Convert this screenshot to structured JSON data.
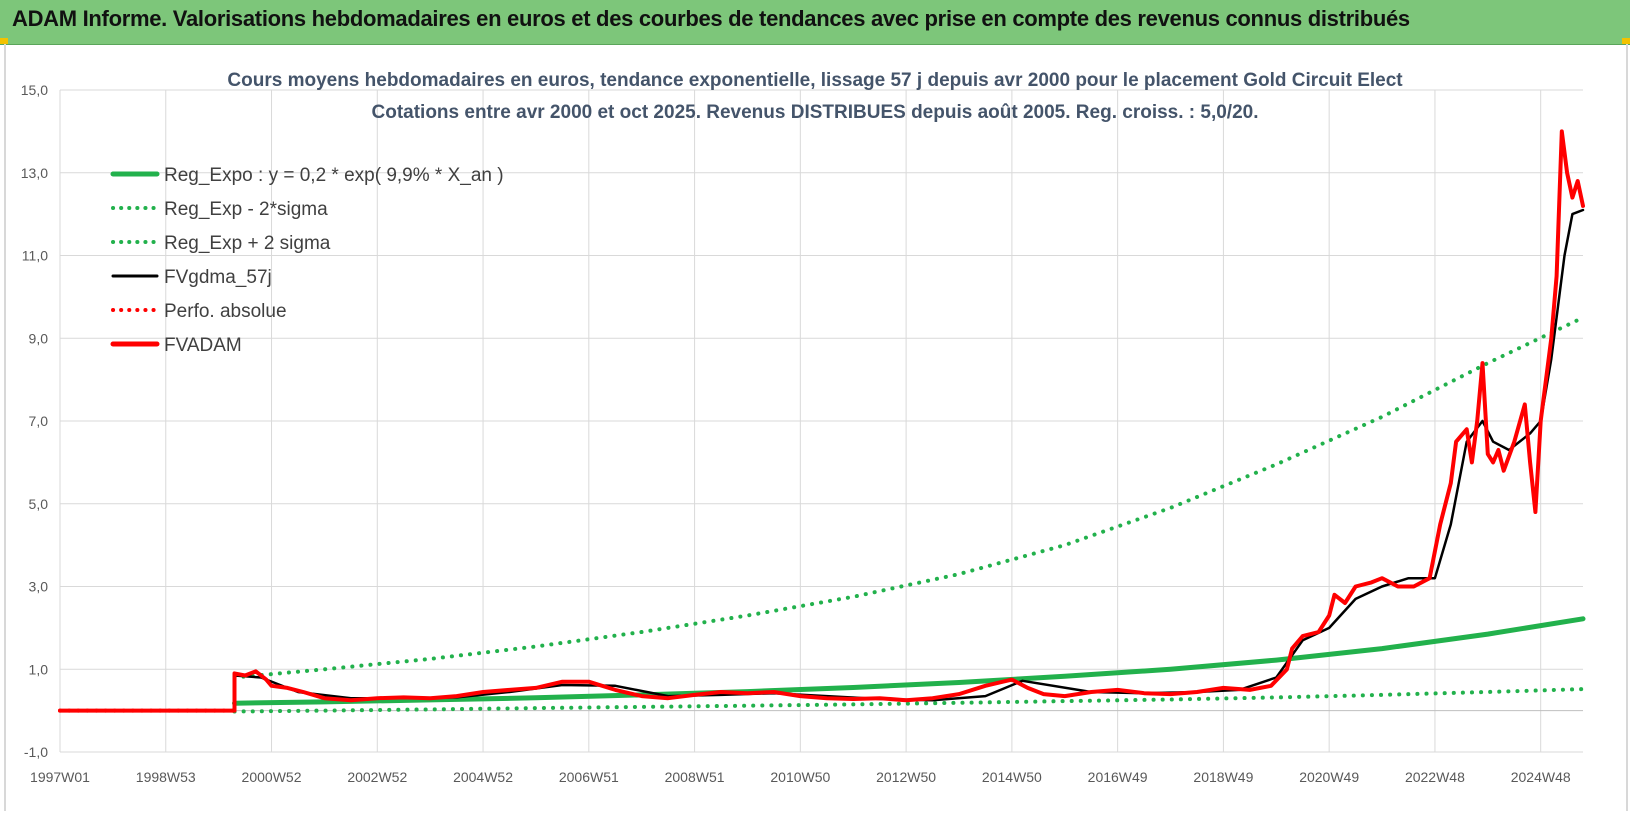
{
  "header": {
    "title": "ADAM Informe. Valorisations hebdomadaires en euros et des courbes de tendances avec prise en compte des revenus connus distribués"
  },
  "chart_data": {
    "type": "line",
    "title": "Cours moyens hebdomadaires en euros, tendance exponentielle, lissage 57 j depuis avr 2000 pour le placement Gold Circuit Elect",
    "subtitle": "Cotations entre avr 2000 et oct 2025. Revenus DISTRIBUES depuis août 2005. Reg. croiss. : 5,0/20.",
    "xlabel": "",
    "ylabel": "",
    "ylim": [
      -1,
      15
    ],
    "yticks": [
      "15,0",
      "13,0",
      "11,0",
      "9,0",
      "7,0",
      "5,0",
      "3,0",
      "1,0",
      "-1,0"
    ],
    "yticks_values": [
      15,
      13,
      11,
      9,
      7,
      5,
      3,
      1,
      -1
    ],
    "xlim": [
      1997.0,
      2025.8
    ],
    "xticks": [
      "1997W01",
      "1998W53",
      "2000W52",
      "2002W52",
      "2004W52",
      "2006W51",
      "2008W51",
      "2010W50",
      "2012W50",
      "2014W50",
      "2016W49",
      "2018W49",
      "2020W49",
      "2022W48",
      "2024W48"
    ],
    "xticks_values": [
      1997.0,
      1999.0,
      2001.0,
      2003.0,
      2005.0,
      2007.0,
      2009.0,
      2011.0,
      2013.0,
      2015.0,
      2017.0,
      2019.0,
      2021.0,
      2023.0,
      2025.0
    ],
    "grid": true,
    "legend_position": "top-left",
    "series": [
      {
        "name": "Reg_Expo : y = 0,2 * exp( 9,9% * X_an )",
        "color": "#22b14c",
        "style": "solid",
        "x": [
          2000.3,
          2002,
          2004,
          2006,
          2008,
          2010,
          2012,
          2014,
          2016,
          2018,
          2020,
          2022,
          2024,
          2025.8
        ],
        "y": [
          0.18,
          0.21,
          0.26,
          0.31,
          0.38,
          0.46,
          0.56,
          0.68,
          0.83,
          1.0,
          1.22,
          1.5,
          1.85,
          2.22
        ]
      },
      {
        "name": "Reg_Exp - 2*sigma",
        "color": "#22b14c",
        "style": "dotted",
        "x": [
          2000.3,
          2002,
          2004,
          2006,
          2008,
          2010,
          2012,
          2014,
          2016,
          2018,
          2020,
          2022,
          2024,
          2025.8
        ],
        "y": [
          -0.02,
          0.0,
          0.03,
          0.06,
          0.09,
          0.12,
          0.15,
          0.19,
          0.23,
          0.27,
          0.32,
          0.38,
          0.45,
          0.52
        ]
      },
      {
        "name": "Reg_Exp + 2 sigma",
        "color": "#22b14c",
        "style": "dotted",
        "x": [
          2000.3,
          2002,
          2004,
          2006,
          2008,
          2010,
          2012,
          2014,
          2016,
          2018,
          2020,
          2022,
          2024,
          2025.8
        ],
        "y": [
          0.8,
          1.0,
          1.25,
          1.55,
          1.9,
          2.3,
          2.75,
          3.3,
          4.0,
          4.9,
          5.95,
          7.1,
          8.4,
          9.5
        ]
      },
      {
        "name": "FVgdma_57j",
        "color": "#000000",
        "style": "solid",
        "x": [
          2000.3,
          2000.8,
          2001.5,
          2002.5,
          2003.5,
          2004.5,
          2005.5,
          2006.5,
          2007.5,
          2008.5,
          2009.5,
          2010.5,
          2011.5,
          2012.5,
          2013.5,
          2014.5,
          2015.2,
          2016.5,
          2017.5,
          2018.5,
          2019.3,
          2020.0,
          2020.5,
          2021.0,
          2021.5,
          2022.0,
          2022.5,
          2023.0,
          2023.3,
          2023.6,
          2023.9,
          2024.1,
          2024.4,
          2024.8,
          2025.0,
          2025.2,
          2025.45,
          2025.6,
          2025.8
        ],
        "y": [
          0.85,
          0.8,
          0.45,
          0.3,
          0.3,
          0.32,
          0.45,
          0.62,
          0.6,
          0.35,
          0.38,
          0.42,
          0.35,
          0.28,
          0.25,
          0.35,
          0.72,
          0.45,
          0.42,
          0.45,
          0.5,
          0.8,
          1.7,
          2.0,
          2.7,
          3.0,
          3.2,
          3.2,
          4.5,
          6.5,
          7.0,
          6.5,
          6.3,
          6.7,
          7.0,
          8.5,
          11.0,
          12.0,
          12.1
        ]
      },
      {
        "name": "Perfo. absolue",
        "color": "#ff0000",
        "style": "dotted",
        "x": [
          1997.0,
          2000.3
        ],
        "y": [
          0.0,
          0.0
        ]
      },
      {
        "name": "FVADAM",
        "color": "#ff0000",
        "style": "solid",
        "x": [
          1997.0,
          2000.3,
          2000.3,
          2000.5,
          2000.7,
          2000.9,
          2001.0,
          2001.3,
          2001.6,
          2002.0,
          2002.5,
          2003.0,
          2003.5,
          2004.0,
          2004.5,
          2005.0,
          2005.5,
          2006.0,
          2006.5,
          2007.0,
          2007.5,
          2008.0,
          2008.5,
          2009.0,
          2009.5,
          2010.0,
          2010.5,
          2011.0,
          2011.5,
          2012.0,
          2012.5,
          2013.0,
          2013.5,
          2014.0,
          2014.5,
          2015.0,
          2015.3,
          2015.6,
          2016.0,
          2016.5,
          2017.0,
          2017.5,
          2018.0,
          2018.5,
          2019.0,
          2019.5,
          2019.9,
          2020.2,
          2020.3,
          2020.5,
          2020.8,
          2021.0,
          2021.1,
          2021.3,
          2021.5,
          2021.8,
          2022.0,
          2022.3,
          2022.6,
          2022.9,
          2023.1,
          2023.3,
          2023.4,
          2023.6,
          2023.7,
          2023.8,
          2023.9,
          2024.0,
          2024.1,
          2024.2,
          2024.3,
          2024.5,
          2024.7,
          2024.8,
          2024.9,
          2025.0,
          2025.1,
          2025.2,
          2025.3,
          2025.4,
          2025.5,
          2025.6,
          2025.7,
          2025.8
        ],
        "y": [
          0.0,
          0.0,
          0.9,
          0.85,
          0.95,
          0.75,
          0.6,
          0.55,
          0.45,
          0.3,
          0.25,
          0.3,
          0.32,
          0.3,
          0.35,
          0.45,
          0.5,
          0.55,
          0.7,
          0.7,
          0.5,
          0.35,
          0.3,
          0.38,
          0.45,
          0.42,
          0.45,
          0.35,
          0.3,
          0.28,
          0.3,
          0.25,
          0.3,
          0.4,
          0.6,
          0.75,
          0.55,
          0.4,
          0.35,
          0.45,
          0.5,
          0.42,
          0.4,
          0.45,
          0.55,
          0.5,
          0.6,
          1.0,
          1.5,
          1.8,
          1.9,
          2.3,
          2.8,
          2.6,
          3.0,
          3.1,
          3.2,
          3.0,
          3.0,
          3.2,
          4.5,
          5.5,
          6.5,
          6.8,
          6.0,
          7.0,
          8.4,
          6.2,
          6.0,
          6.3,
          5.8,
          6.5,
          7.4,
          6.0,
          4.8,
          7.0,
          8.0,
          9.0,
          10.5,
          14.0,
          13.0,
          12.4,
          12.8,
          12.2
        ]
      }
    ]
  }
}
